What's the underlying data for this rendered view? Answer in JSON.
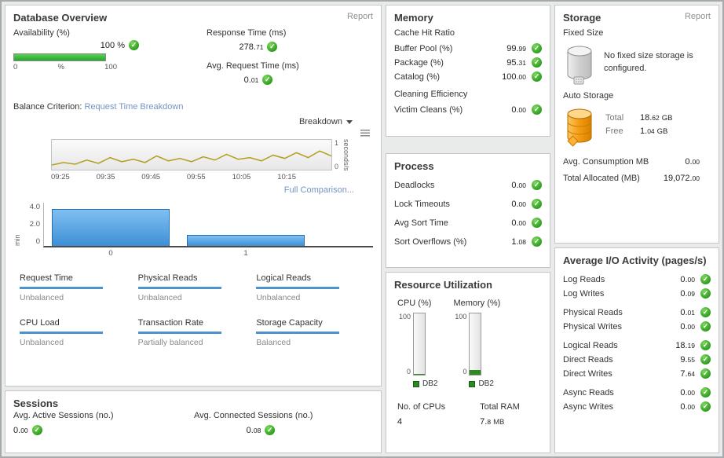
{
  "colors": {
    "check_green": "#2f9e1f",
    "bar_blue": "#3e8fd6",
    "balance_line_blue": "#4f93ce",
    "availability_green": "#2aa52a",
    "link_blue": "#7494c4",
    "gauge_green": "#2c8a21",
    "auto_storage_orange": "#f09d1e"
  },
  "overview": {
    "title": "Database Overview",
    "report_label": "Report",
    "availability": {
      "label": "Availability (%)",
      "value": "100",
      "unit": "%",
      "scale": [
        "0",
        "%",
        "100"
      ]
    },
    "response_time": {
      "label": "Response Time (ms)",
      "value": "278.71"
    },
    "avg_request_time": {
      "label": "Avg. Request Time (ms)",
      "value": "0.01"
    },
    "balance_criterion_label": "Balance Criterion:",
    "balance_criterion_link": "Request Time Breakdown",
    "breakdown_label": "Breakdown",
    "timeline": {
      "type": "line",
      "y_unit": "seconds/s",
      "y_ticks": [
        "1",
        "0"
      ],
      "ylim": [
        0,
        1
      ],
      "x_labels": [
        "09:25",
        "09:35",
        "09:45",
        "09:55",
        "10:05",
        "10:15"
      ],
      "values": [
        0.03,
        0.06,
        0.04,
        0.09,
        0.05,
        0.12,
        0.07,
        0.1,
        0.06,
        0.14,
        0.08,
        0.11,
        0.07,
        0.13,
        0.09,
        0.16,
        0.1,
        0.12,
        0.08,
        0.15,
        0.11,
        0.18,
        0.12,
        0.2,
        0.14
      ]
    },
    "full_comparison_label": "Full Comparison...",
    "bar_chart": {
      "type": "bar",
      "categories": [
        "0",
        "1"
      ],
      "values": [
        3.55,
        1.05
      ],
      "y_ticks": [
        "4.0",
        "2.0",
        "0"
      ],
      "y_unit": "min",
      "ylim": [
        0,
        4
      ]
    },
    "balance_grid": [
      {
        "label": "Request Time",
        "status": "Unbalanced"
      },
      {
        "label": "Physical Reads",
        "status": "Unbalanced"
      },
      {
        "label": "Logical Reads",
        "status": "Unbalanced"
      },
      {
        "label": "CPU Load",
        "status": "Unbalanced"
      },
      {
        "label": "Transaction Rate",
        "status": "Partially balanced"
      },
      {
        "label": "Storage Capacity",
        "status": "Balanced"
      }
    ]
  },
  "sessions": {
    "title": "Sessions",
    "metrics": [
      {
        "label": "Avg. Active Sessions (no.)",
        "value": "0.00"
      },
      {
        "label": "Avg. Connected Sessions (no.)",
        "value": "0.08"
      }
    ]
  },
  "memory": {
    "title": "Memory",
    "sections": [
      {
        "header": "Cache Hit Ratio",
        "rows": [
          {
            "label": "Buffer Pool (%)",
            "value": "99.99"
          },
          {
            "label": "Package (%)",
            "value": "95.31"
          },
          {
            "label": "Catalog (%)",
            "value": "100.00"
          }
        ]
      },
      {
        "header": "Cleaning Efficiency",
        "rows": [
          {
            "label": "Victim Cleans (%)",
            "value": "0.00"
          }
        ]
      }
    ]
  },
  "process": {
    "title": "Process",
    "rows": [
      {
        "label": "Deadlocks",
        "value": "0.00"
      },
      {
        "label": "Lock Timeouts",
        "value": "0.00"
      },
      {
        "label": "Avg Sort Time",
        "value": "0.00"
      },
      {
        "label": "Sort Overflows (%)",
        "value": "1.08"
      }
    ]
  },
  "resource": {
    "title": "Resource Utilization",
    "gauges": [
      {
        "label": "CPU (%)",
        "max_tick": "100",
        "min_tick": "0",
        "legend": "DB2",
        "fill": 1
      },
      {
        "label": "Memory (%)",
        "max_tick": "100",
        "min_tick": "0",
        "legend": "DB2",
        "fill": 8
      }
    ],
    "cpus": {
      "label": "No. of CPUs",
      "value": "4"
    },
    "ram": {
      "label": "Total RAM",
      "value": "7.8",
      "unit": "MB"
    }
  },
  "storage": {
    "title": "Storage",
    "report_label": "Report",
    "fixed_size_label": "Fixed Size",
    "fixed_size_message": "No fixed size storage is configured.",
    "auto_storage_label": "Auto Storage",
    "total": {
      "label": "Total",
      "value": "18.62",
      "unit": "GB"
    },
    "free": {
      "label": "Free",
      "value": "1.04",
      "unit": "GB"
    },
    "rows": [
      {
        "label": "Avg. Consumption MB",
        "value": "0.00"
      },
      {
        "label": "Total Allocated (MB)",
        "value": "19,072.00"
      }
    ]
  },
  "io": {
    "title": "Average I/O Activity (pages/s)",
    "groups": [
      [
        {
          "label": "Log Reads",
          "value": "0.00"
        },
        {
          "label": "Log Writes",
          "value": "0.09"
        }
      ],
      [
        {
          "label": "Physical Reads",
          "value": "0.01"
        },
        {
          "label": "Physical Writes",
          "value": "0.00"
        }
      ],
      [
        {
          "label": "Logical Reads",
          "value": "18.19"
        },
        {
          "label": "Direct Reads",
          "value": "9.55"
        },
        {
          "label": "Direct Writes",
          "value": "7.64"
        }
      ],
      [
        {
          "label": "Async Reads",
          "value": "0.00"
        },
        {
          "label": "Async Writes",
          "value": "0.00"
        }
      ]
    ]
  }
}
